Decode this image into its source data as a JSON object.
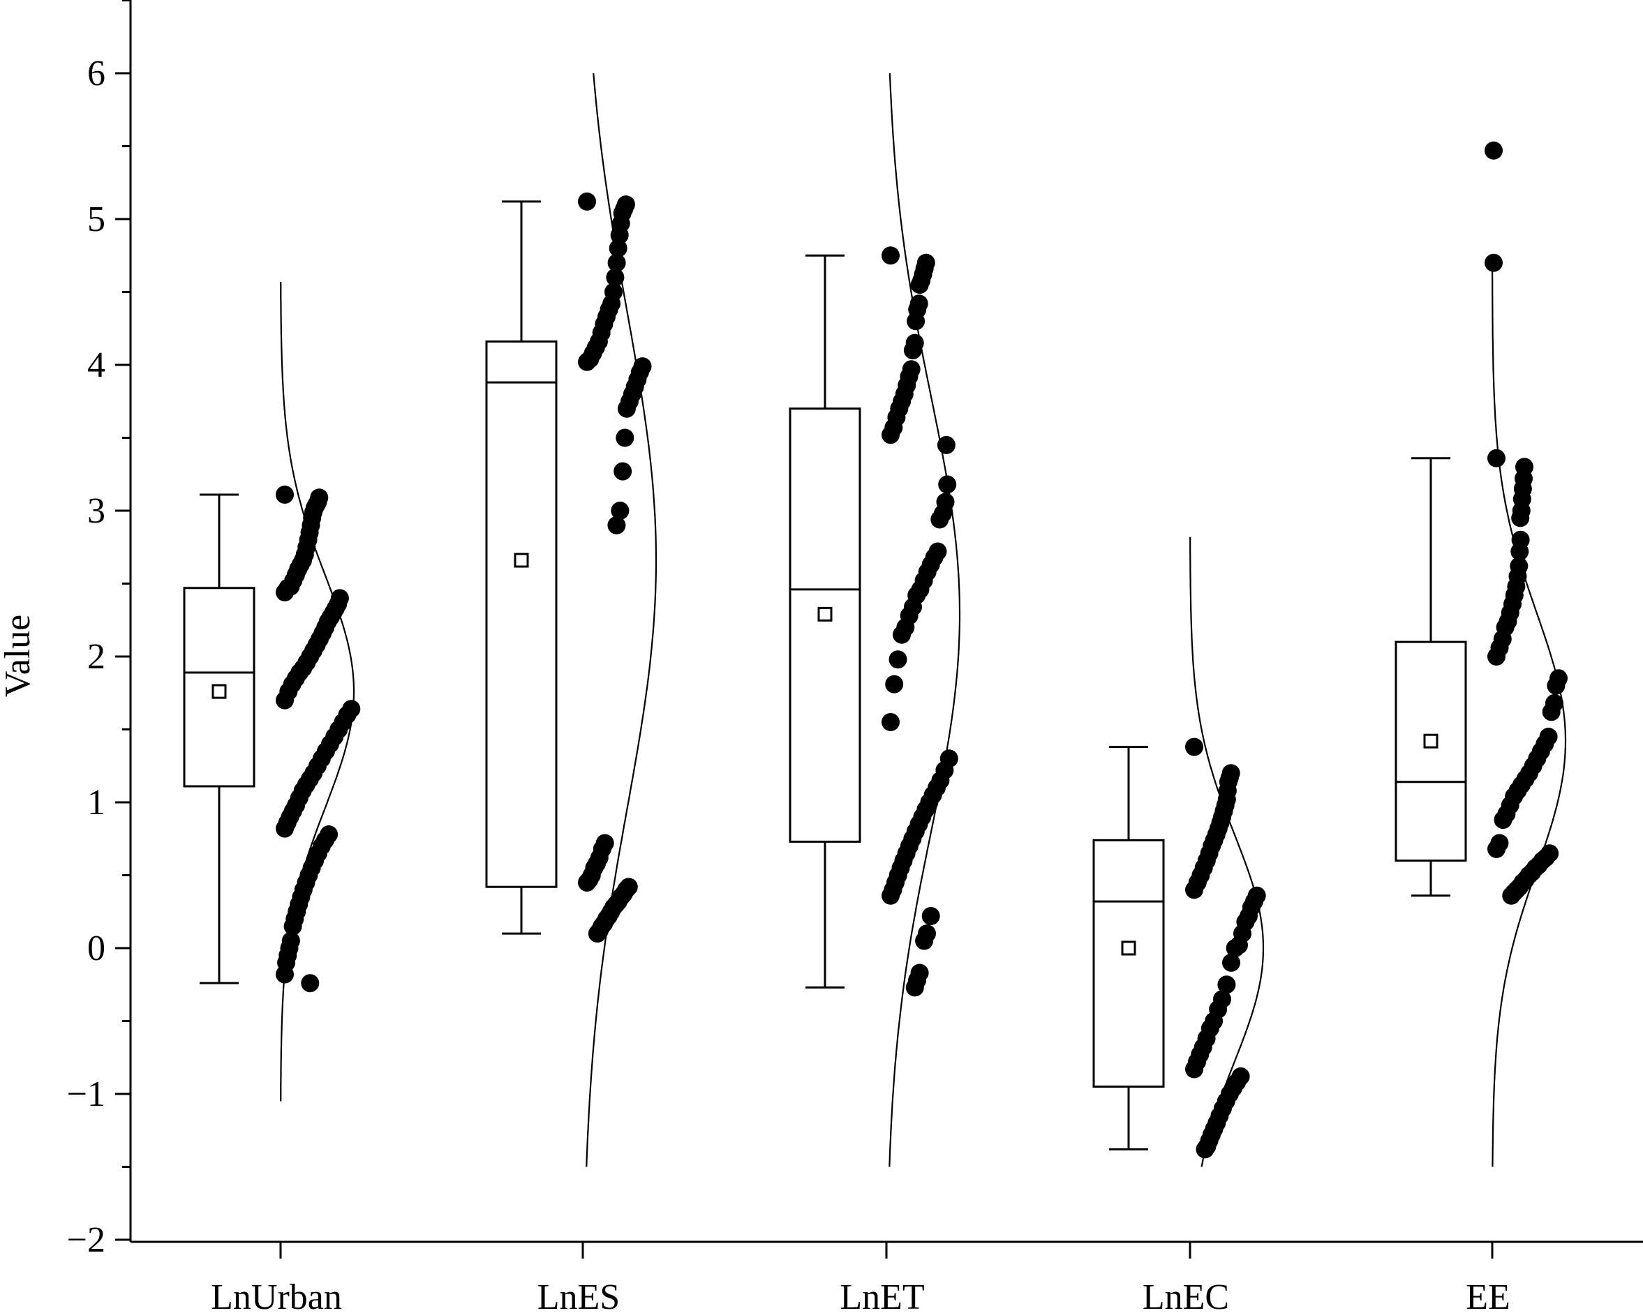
{
  "chart_data": {
    "type": "box",
    "ylabel": "Value",
    "xlabel": "",
    "ylim": [
      -2,
      6.5
    ],
    "yticks": [
      "-2",
      "-1",
      "0",
      "1",
      "2",
      "3",
      "4",
      "5",
      "6"
    ],
    "categories": [
      "LnUrban",
      "LnES",
      "LnET",
      "LnEC",
      "EE"
    ],
    "boxes": [
      {
        "name": "LnUrban",
        "whisker_low": -0.24,
        "q1": 1.11,
        "median": 1.89,
        "q3": 2.47,
        "whisker_high": 3.11,
        "mean": 1.76
      },
      {
        "name": "LnES",
        "whisker_low": 0.1,
        "q1": 0.42,
        "median": 3.88,
        "q3": 4.16,
        "whisker_high": 5.12,
        "mean": 2.66
      },
      {
        "name": "LnET",
        "whisker_low": -0.27,
        "q1": 0.73,
        "median": 2.46,
        "q3": 3.7,
        "whisker_high": 4.75,
        "mean": 2.29
      },
      {
        "name": "LnEC",
        "whisker_low": -1.38,
        "q1": -0.95,
        "median": 0.32,
        "q3": 0.74,
        "whisker_high": 1.38,
        "mean": 0.0
      },
      {
        "name": "EE",
        "whisker_low": 0.36,
        "q1": 0.6,
        "median": 1.14,
        "q3": 2.1,
        "whisker_high": 3.36,
        "mean": 1.42
      }
    ],
    "outliers": [
      {
        "category": "EE",
        "value": 5.47
      },
      {
        "category": "EE",
        "value": 4.7
      }
    ],
    "distribution_curves": [
      {
        "category": "LnUrban",
        "mean": 1.76,
        "sd": 0.8,
        "range": [
          -1.05,
          4.57
        ]
      },
      {
        "category": "LnES",
        "mean": 2.66,
        "sd": 1.7,
        "range": [
          -1.5,
          6.0
        ]
      },
      {
        "category": "LnET",
        "mean": 2.29,
        "sd": 1.5,
        "range": [
          -1.5,
          6.0
        ]
      },
      {
        "category": "LnEC",
        "mean": 0.0,
        "sd": 0.78,
        "range": [
          -1.5,
          2.82
        ]
      },
      {
        "category": "EE",
        "mean": 1.42,
        "sd": 0.88,
        "range": [
          -1.5,
          4.65
        ]
      }
    ],
    "points": [
      {
        "category": "LnUrban",
        "values": [
          3.11,
          3.09,
          3.06,
          3.04,
          3.02,
          2.99,
          2.95,
          2.9,
          2.85,
          2.8,
          2.75,
          2.7,
          2.66,
          2.63,
          2.6,
          2.56,
          2.52,
          2.48,
          2.47,
          2.44,
          2.4,
          2.36,
          2.33,
          2.3,
          2.27,
          2.24,
          2.2,
          2.16,
          2.12,
          2.08,
          2.04,
          2.0,
          1.96,
          1.92,
          1.89,
          1.85,
          1.81,
          1.76,
          1.7,
          1.64,
          1.6,
          1.55,
          1.5,
          1.45,
          1.4,
          1.35,
          1.3,
          1.25,
          1.2,
          1.16,
          1.12,
          1.08,
          1.03,
          0.98,
          0.94,
          0.9,
          0.86,
          0.82,
          0.78,
          0.74,
          0.7,
          0.65,
          0.6,
          0.55,
          0.5,
          0.45,
          0.4,
          0.35,
          0.3,
          0.25,
          0.2,
          0.15,
          0.05,
          0.0,
          -0.05,
          -0.1,
          -0.18,
          -0.24
        ]
      },
      {
        "category": "LnES",
        "values": [
          5.12,
          5.1,
          5.07,
          5.04,
          4.97,
          4.89,
          4.8,
          4.7,
          4.6,
          4.5,
          4.42,
          4.38,
          4.33,
          4.28,
          4.22,
          4.16,
          4.12,
          4.08,
          4.04,
          4.02,
          3.99,
          3.95,
          3.9,
          3.85,
          3.8,
          3.75,
          3.7,
          3.5,
          3.27,
          3.0,
          2.9,
          0.72,
          0.68,
          0.62,
          0.58,
          0.55,
          0.5,
          0.47,
          0.45,
          0.42,
          0.4,
          0.37,
          0.35,
          0.32,
          0.3,
          0.28,
          0.25,
          0.22,
          0.2,
          0.17,
          0.15,
          0.12,
          0.1
        ]
      },
      {
        "category": "LnET",
        "values": [
          4.75,
          4.7,
          4.66,
          4.62,
          4.58,
          4.55,
          4.42,
          4.38,
          4.3,
          4.15,
          4.1,
          3.97,
          3.92,
          3.86,
          3.8,
          3.75,
          3.7,
          3.64,
          3.57,
          3.52,
          3.45,
          3.18,
          3.06,
          2.98,
          2.94,
          2.72,
          2.68,
          2.63,
          2.58,
          2.52,
          2.46,
          2.42,
          2.34,
          2.28,
          2.2,
          2.15,
          1.98,
          1.81,
          1.55,
          1.3,
          1.22,
          1.15,
          1.1,
          1.05,
          1.0,
          0.95,
          0.9,
          0.85,
          0.8,
          0.75,
          0.7,
          0.65,
          0.6,
          0.55,
          0.5,
          0.45,
          0.4,
          0.36,
          0.22,
          0.1,
          0.05,
          -0.17,
          -0.22,
          -0.27
        ]
      },
      {
        "category": "LnEC",
        "values": [
          1.38,
          1.2,
          1.17,
          1.14,
          1.08,
          1.02,
          0.98,
          0.94,
          0.9,
          0.86,
          0.82,
          0.78,
          0.74,
          0.7,
          0.65,
          0.6,
          0.55,
          0.5,
          0.45,
          0.4,
          0.36,
          0.32,
          0.28,
          0.22,
          0.18,
          0.1,
          0.02,
          0.0,
          -0.1,
          -0.25,
          -0.35,
          -0.42,
          -0.5,
          -0.55,
          -0.62,
          -0.68,
          -0.73,
          -0.78,
          -0.83,
          -0.88,
          -0.92,
          -0.96,
          -1.0,
          -1.05,
          -1.1,
          -1.15,
          -1.2,
          -1.24,
          -1.28,
          -1.32,
          -1.36,
          -1.38
        ]
      },
      {
        "category": "EE",
        "values": [
          3.36,
          3.3,
          3.22,
          3.15,
          3.08,
          3.0,
          2.95,
          2.8,
          2.72,
          2.62,
          2.55,
          2.48,
          2.42,
          2.36,
          2.3,
          2.24,
          2.2,
          2.12,
          2.06,
          2.0,
          1.85,
          1.8,
          1.68,
          1.62,
          1.45,
          1.4,
          1.35,
          1.3,
          1.25,
          1.2,
          1.16,
          1.12,
          1.08,
          1.04,
          0.98,
          0.92,
          0.88,
          0.72,
          0.68,
          0.65,
          0.62,
          0.6,
          0.57,
          0.55,
          0.52,
          0.5,
          0.47,
          0.45,
          0.42,
          0.4,
          0.38,
          0.36
        ]
      }
    ]
  }
}
